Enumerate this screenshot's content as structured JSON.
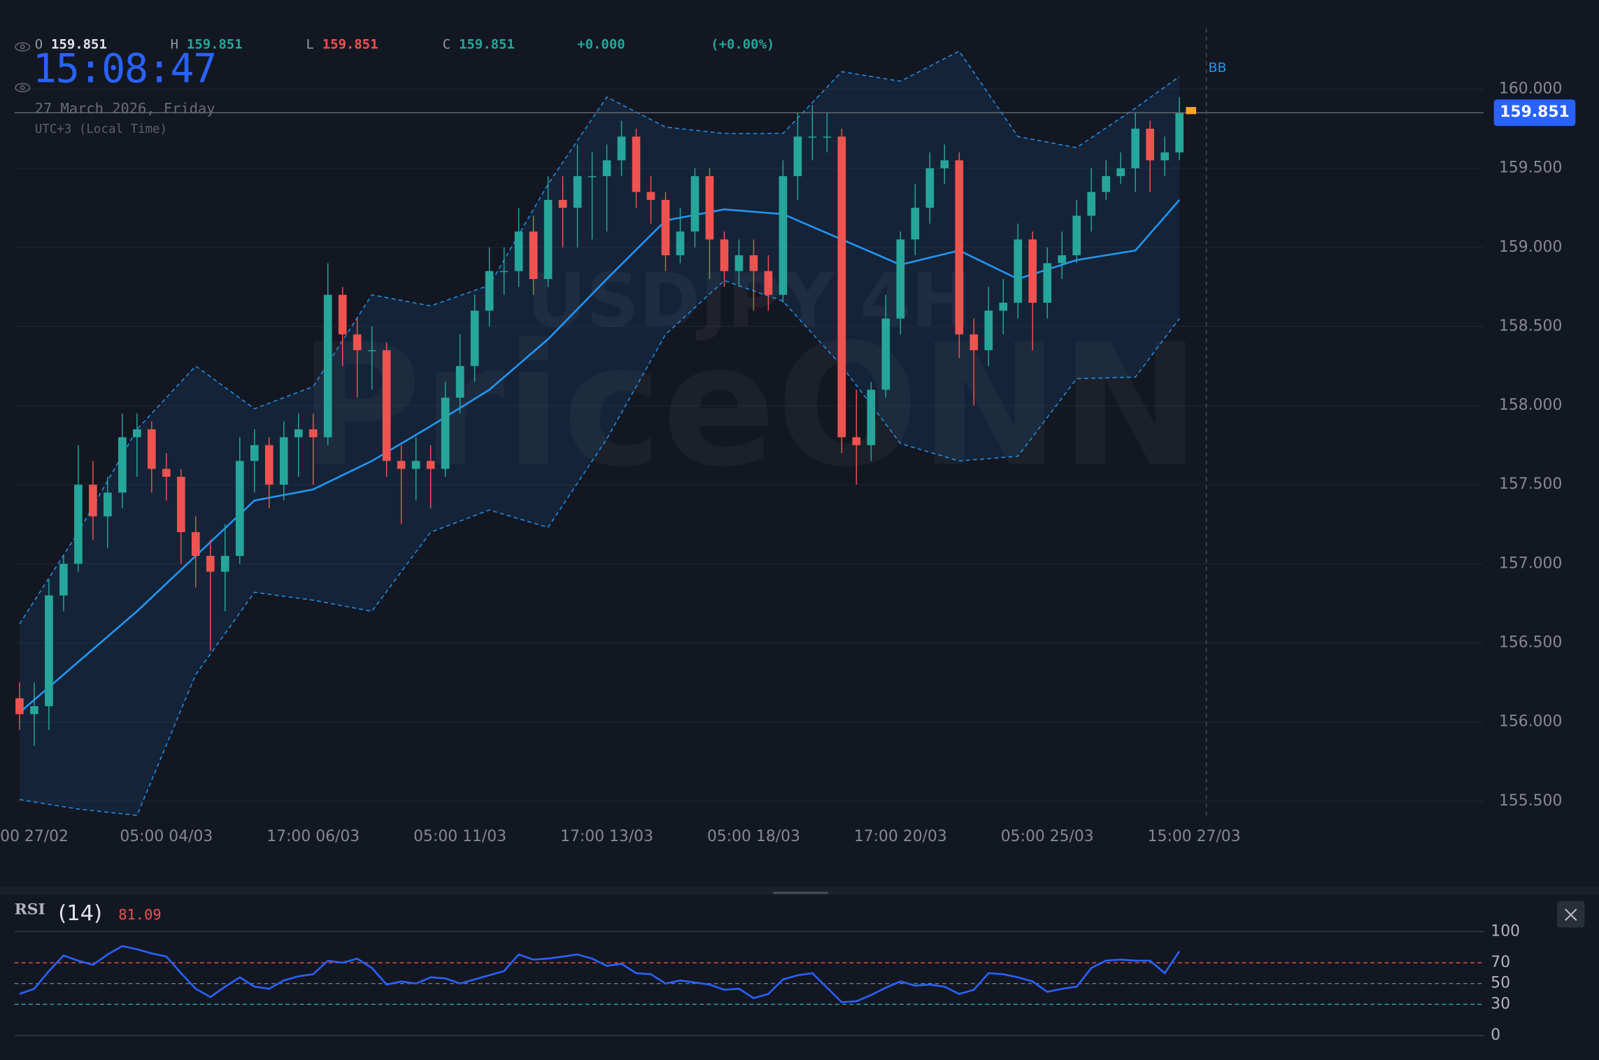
{
  "header": {
    "clock": "15:08:47",
    "date": "27 March 2026, Friday",
    "timezone": "UTC+3 (Local Time)",
    "ohlc": [
      {
        "label": "O",
        "value": 159.851,
        "color": "#e0e3eb"
      },
      {
        "label": "H",
        "value": 159.851,
        "color": "#26a69a"
      },
      {
        "label": "L",
        "value": 159.851,
        "color": "#ef5350"
      },
      {
        "label": "C",
        "value": 159.851,
        "color": "#26a69a"
      }
    ],
    "change": "+0.000",
    "change_pct": "(+0.00%)"
  },
  "chart_data": [
    {
      "type": "candlestick",
      "title": "USDJPY 4H",
      "watermark": "PriceONN",
      "up_color": "#26a69a",
      "down_color": "#ef5350",
      "grid": true,
      "open": [
        156.15,
        156.05,
        156.1,
        156.8,
        157.0,
        157.5,
        157.3,
        157.45,
        157.8,
        157.85,
        157.6,
        157.55,
        157.2,
        157.05,
        156.95,
        157.05,
        157.65,
        157.75,
        157.5,
        157.8,
        157.85,
        157.8,
        158.7,
        158.45,
        158.35,
        158.35,
        157.65,
        157.6,
        157.65,
        157.6,
        158.05,
        158.25,
        158.6,
        158.85,
        158.85,
        159.1,
        158.8,
        159.3,
        159.25,
        159.45,
        159.45,
        159.55,
        159.7,
        159.35,
        159.3,
        158.95,
        159.1,
        159.45,
        159.05,
        158.85,
        158.95,
        158.85,
        158.7,
        159.45,
        159.7,
        159.7,
        159.7,
        157.8,
        157.75,
        158.1,
        158.55,
        159.05,
        159.25,
        159.5,
        159.55,
        158.45,
        158.35,
        158.6,
        158.65,
        159.05,
        158.65,
        158.9,
        158.95,
        159.2,
        159.35,
        159.45,
        159.5,
        159.75,
        159.55,
        159.6
      ],
      "high": [
        156.25,
        156.25,
        156.9,
        157.05,
        157.75,
        157.65,
        157.55,
        157.95,
        157.95,
        157.9,
        157.7,
        157.6,
        157.3,
        157.15,
        157.25,
        157.8,
        157.85,
        157.8,
        157.9,
        157.95,
        157.95,
        158.9,
        158.75,
        158.55,
        158.5,
        158.4,
        157.75,
        157.8,
        157.75,
        158.15,
        158.45,
        158.7,
        159.0,
        159.0,
        159.25,
        159.2,
        159.45,
        159.45,
        159.65,
        159.6,
        159.65,
        159.8,
        159.75,
        159.45,
        159.35,
        159.25,
        159.5,
        159.5,
        159.1,
        159.05,
        159.05,
        158.95,
        159.55,
        159.85,
        159.9,
        159.85,
        159.75,
        158.1,
        158.15,
        158.7,
        159.1,
        159.4,
        159.6,
        159.65,
        159.6,
        158.55,
        158.75,
        158.8,
        159.15,
        159.1,
        159.0,
        159.1,
        159.3,
        159.5,
        159.55,
        159.6,
        159.85,
        159.8,
        159.7,
        159.95
      ],
      "low": [
        155.95,
        155.85,
        155.95,
        156.7,
        156.95,
        157.15,
        157.1,
        157.35,
        157.55,
        157.45,
        157.4,
        157.0,
        156.85,
        156.45,
        156.7,
        157.0,
        157.45,
        157.35,
        157.4,
        157.55,
        157.5,
        157.75,
        158.25,
        158.05,
        158.1,
        157.55,
        157.25,
        157.4,
        157.35,
        157.55,
        157.95,
        158.15,
        158.5,
        158.7,
        158.75,
        158.7,
        158.75,
        159.0,
        159.0,
        159.05,
        159.1,
        159.45,
        159.25,
        159.15,
        158.85,
        158.9,
        159.0,
        158.8,
        158.75,
        158.75,
        158.6,
        158.6,
        158.65,
        159.3,
        159.55,
        159.6,
        157.7,
        157.5,
        157.65,
        158.05,
        158.45,
        158.95,
        159.15,
        159.4,
        158.3,
        158.0,
        158.25,
        158.45,
        158.55,
        158.35,
        158.55,
        158.8,
        158.9,
        159.1,
        159.3,
        159.4,
        159.35,
        159.35,
        159.45,
        159.55
      ],
      "close": [
        156.05,
        156.1,
        156.8,
        157.0,
        157.5,
        157.3,
        157.45,
        157.8,
        157.85,
        157.6,
        157.55,
        157.2,
        157.05,
        156.95,
        157.05,
        157.65,
        157.75,
        157.5,
        157.8,
        157.85,
        157.8,
        158.7,
        158.45,
        158.35,
        158.35,
        157.65,
        157.6,
        157.65,
        157.6,
        158.05,
        158.25,
        158.6,
        158.85,
        158.85,
        159.1,
        158.8,
        159.3,
        159.25,
        159.45,
        159.45,
        159.55,
        159.7,
        159.35,
        159.3,
        158.95,
        159.1,
        159.45,
        159.05,
        158.85,
        158.95,
        158.85,
        158.7,
        159.45,
        159.7,
        159.7,
        159.7,
        157.8,
        157.75,
        158.1,
        158.55,
        159.05,
        159.25,
        159.5,
        159.55,
        158.45,
        158.35,
        158.6,
        158.65,
        159.05,
        158.65,
        158.9,
        158.95,
        159.2,
        159.35,
        159.45,
        159.5,
        159.75,
        159.55,
        159.6,
        159.851
      ],
      "bb": {
        "name": "BB",
        "color": "#2196f3",
        "x": [
          0,
          4,
          8,
          12,
          16,
          20,
          24,
          28,
          32,
          36,
          40,
          44,
          48,
          52,
          56,
          60,
          64,
          68,
          72,
          76,
          79
        ],
        "middle": [
          156.06,
          156.38,
          156.7,
          157.05,
          157.4,
          157.47,
          157.65,
          157.87,
          158.1,
          158.42,
          158.8,
          159.17,
          159.24,
          159.21,
          159.05,
          158.89,
          158.98,
          158.8,
          158.92,
          158.98,
          159.3
        ],
        "upper": [
          156.62,
          157.2,
          157.85,
          158.25,
          157.98,
          158.12,
          158.7,
          158.63,
          158.76,
          159.4,
          159.95,
          159.76,
          159.72,
          159.72,
          160.11,
          160.05,
          160.24,
          159.7,
          159.63,
          159.88,
          160.08
        ],
        "lower": [
          155.51,
          155.45,
          155.41,
          156.3,
          156.82,
          156.77,
          156.7,
          157.2,
          157.34,
          157.23,
          157.79,
          158.45,
          158.79,
          158.66,
          158.25,
          157.76,
          157.65,
          157.68,
          158.17,
          158.18,
          158.55
        ]
      },
      "xlim": [
        -0.35,
        99.72
      ],
      "ylim": [
        155.41,
        160.37
      ],
      "xticks": [
        {
          "value": 0,
          "label": "00 27/02"
        },
        {
          "value": 10,
          "label": "05:00 04/03"
        },
        {
          "value": 20,
          "label": "17:00 06/03"
        },
        {
          "value": 30,
          "label": "05:00 11/03"
        },
        {
          "value": 40,
          "label": "17:00 13/03"
        },
        {
          "value": 50,
          "label": "05:00 18/03"
        },
        {
          "value": 60,
          "label": "17:00 20/03"
        },
        {
          "value": 70,
          "label": "05:00 25/03"
        },
        {
          "value": 80,
          "label": "15:00 27/03"
        }
      ],
      "yticks": [
        {
          "value": 155.5,
          "label": "155.500"
        },
        {
          "value": 156,
          "label": "156.000"
        },
        {
          "value": 156.5,
          "label": "156.500"
        },
        {
          "value": 157,
          "label": "157.000"
        },
        {
          "value": 157.5,
          "label": "157.500"
        },
        {
          "value": 158,
          "label": "158.000"
        },
        {
          "value": 158.5,
          "label": "158.500"
        },
        {
          "value": 159,
          "label": "159.000"
        },
        {
          "value": 159.5,
          "label": "159.500"
        },
        {
          "value": 160,
          "label": "160.000"
        }
      ]
    },
    {
      "type": "line",
      "title": "RSI",
      "period": "(14)",
      "color": "#2962ff",
      "values": [
        40,
        45,
        62,
        77,
        72,
        68,
        78,
        86,
        83,
        79,
        76,
        60,
        45,
        37,
        47,
        56,
        47,
        45,
        53,
        57,
        59,
        72,
        70,
        74,
        65,
        49,
        52,
        50,
        56,
        55,
        50,
        54,
        58,
        62,
        78,
        73,
        74,
        76,
        78,
        74,
        67,
        69,
        60,
        59,
        50,
        53,
        51,
        49,
        44,
        45,
        36,
        40,
        54,
        58,
        60,
        46,
        32,
        33,
        39,
        46,
        52,
        48,
        49,
        47,
        40,
        44,
        60,
        59,
        56,
        52,
        42,
        45,
        47,
        65,
        72,
        73,
        72,
        72,
        60,
        81.09
      ],
      "ylim": [
        0,
        100
      ],
      "yticks": [
        100,
        70,
        50,
        30,
        0
      ],
      "line_colors": [
        "#363a45",
        "#ef5350",
        "#787b86",
        "#26a69a",
        "#363a45"
      ],
      "dashed": [
        false,
        true,
        true,
        true,
        false
      ]
    }
  ]
}
